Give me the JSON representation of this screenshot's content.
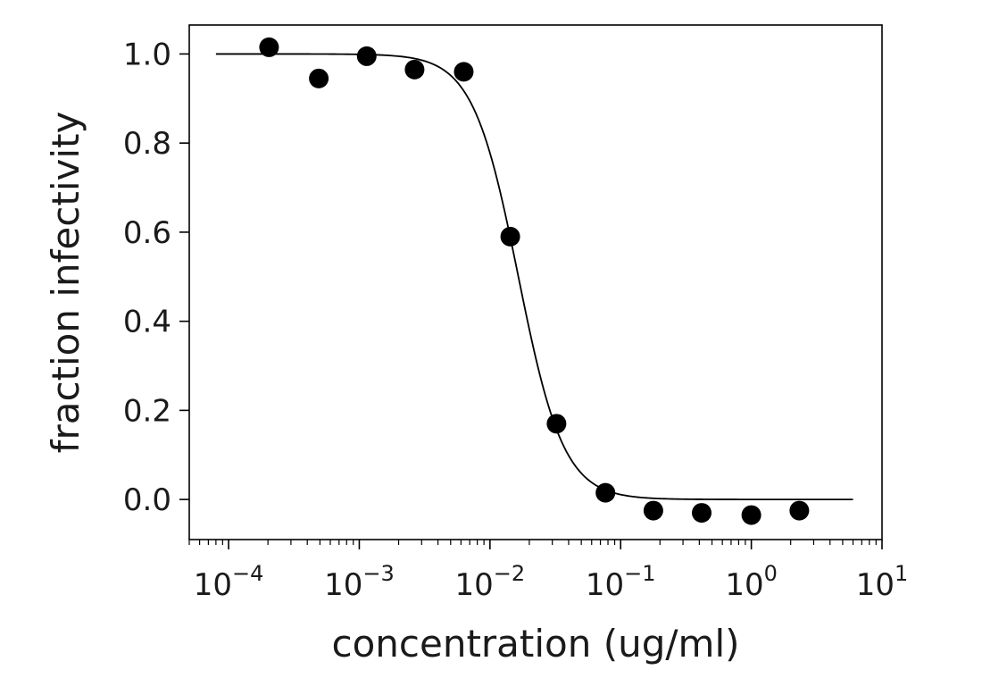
{
  "chart_data": {
    "type": "scatter",
    "title": "",
    "xlabel": "concentration (ug/ml)",
    "ylabel": "fraction infectivity",
    "xscale": "log",
    "xlim": [
      5e-05,
      10
    ],
    "ylim": [
      -0.09,
      1.065
    ],
    "grid": false,
    "legend": "none",
    "x_ticks": [
      {
        "base": "10",
        "exp": "−4",
        "value": 0.0001
      },
      {
        "base": "10",
        "exp": "−3",
        "value": 0.001
      },
      {
        "base": "10",
        "exp": "−2",
        "value": 0.01
      },
      {
        "base": "10",
        "exp": "−1",
        "value": 0.1
      },
      {
        "base": "10",
        "exp": "0",
        "value": 1
      },
      {
        "base": "10",
        "exp": "1",
        "value": 10
      }
    ],
    "y_ticks": [
      {
        "label": "0.0",
        "value": 0.0
      },
      {
        "label": "0.2",
        "value": 0.2
      },
      {
        "label": "0.4",
        "value": 0.4
      },
      {
        "label": "0.6",
        "value": 0.6
      },
      {
        "label": "0.8",
        "value": 0.8
      },
      {
        "label": "1.0",
        "value": 1.0
      }
    ],
    "points": {
      "x": [
        0.000204,
        0.00049,
        0.00114,
        0.00265,
        0.0063,
        0.0143,
        0.0323,
        0.0765,
        0.178,
        0.417,
        1.0,
        2.33
      ],
      "y": [
        1.015,
        0.945,
        0.995,
        0.965,
        0.96,
        0.59,
        0.17,
        0.015,
        -0.025,
        -0.03,
        -0.035,
        -0.025
      ],
      "color": "#000000"
    },
    "fit_curve": {
      "type": "hill",
      "ic50": 0.0165,
      "slope": 2.5,
      "top": 1.0,
      "bottom": 0.0,
      "x_range": [
        8e-05,
        6.0
      ],
      "color": "#000000"
    }
  }
}
